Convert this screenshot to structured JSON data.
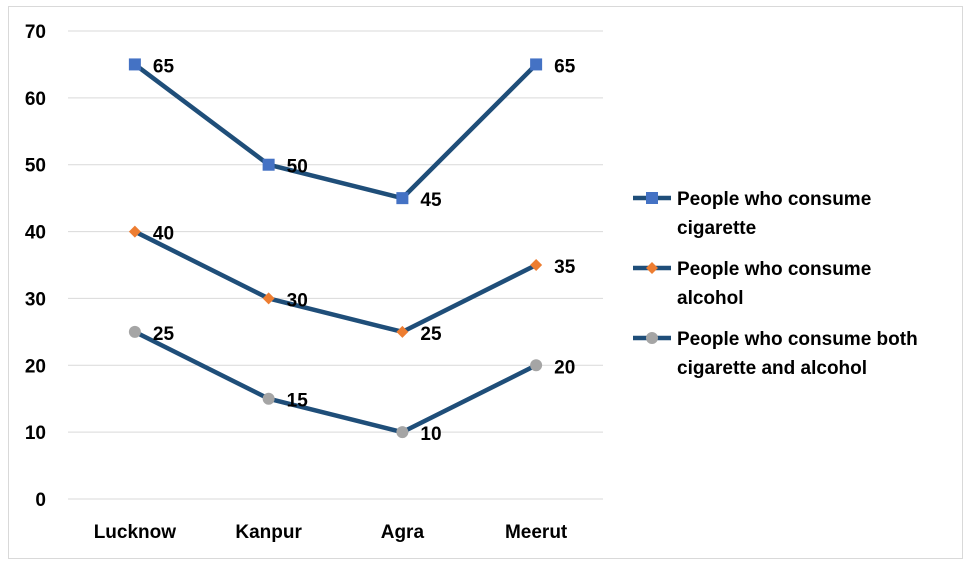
{
  "chart_data": {
    "type": "line",
    "categories": [
      "Lucknow",
      "Kanpur",
      "Agra",
      "Meerut"
    ],
    "ylim": [
      0,
      70
    ],
    "yticks": [
      0,
      10,
      20,
      30,
      40,
      50,
      60,
      70
    ],
    "grid": true,
    "legend_position": "right",
    "line_color": "#1f4e79",
    "series": [
      {
        "name_lines": [
          "People who consume",
          "cigarette"
        ],
        "values": [
          65,
          50,
          45,
          65
        ],
        "marker": "square",
        "marker_color": "#4472c4"
      },
      {
        "name_lines": [
          "People who consume",
          "alcohol"
        ],
        "values": [
          40,
          30,
          25,
          35
        ],
        "marker": "diamond",
        "marker_color": "#ed7d31"
      },
      {
        "name_lines": [
          "People who consume both",
          "cigarette and alcohol"
        ],
        "values": [
          25,
          15,
          10,
          20
        ],
        "marker": "circle",
        "marker_color": "#a5a5a5"
      }
    ]
  }
}
